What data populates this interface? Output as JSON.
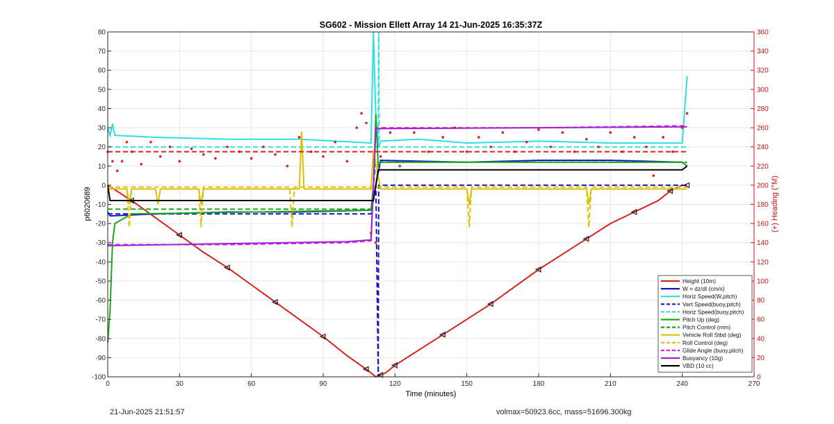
{
  "footer": {
    "timestamp": "21-Jun-2025 21:51:57",
    "params": "volmax=50923.6cc, mass=51696.300kg"
  },
  "chart_data": {
    "type": "line",
    "title": "SG602 - Mission Ellett Array 14 21-Jun-2025 16:35:37Z",
    "xlabel": "Time (minutes)",
    "ylabel": "p6020689",
    "y2label": "(+) Heading (°M)",
    "xlim": [
      0,
      270
    ],
    "ylim": [
      -100,
      80
    ],
    "y2lim": [
      0,
      360
    ],
    "xticks": [
      0,
      30,
      60,
      90,
      120,
      150,
      180,
      210,
      240,
      270
    ],
    "yticks": [
      -100,
      -90,
      -80,
      -70,
      -60,
      -50,
      -40,
      -30,
      -20,
      -10,
      0,
      10,
      20,
      30,
      40,
      50,
      60,
      70,
      80
    ],
    "y2ticks": [
      0,
      20,
      40,
      60,
      80,
      100,
      120,
      140,
      160,
      180,
      200,
      220,
      240,
      260,
      280,
      300,
      320,
      340,
      360
    ],
    "grid": true,
    "legend_position": "bottom-right",
    "colors": {
      "axis_left": "#262626",
      "axis_right": "#cc1111",
      "grid": "#e6e6e6"
    },
    "series": [
      {
        "name": "Height (10m)",
        "color": "#d62020",
        "style": "solid",
        "axis": "left",
        "x": [
          0,
          10,
          20,
          30,
          40,
          50,
          60,
          70,
          80,
          90,
          100,
          108,
          112,
          114,
          116,
          120,
          130,
          140,
          150,
          160,
          170,
          180,
          190,
          200,
          210,
          220,
          230,
          235,
          240,
          242
        ],
        "y": [
          0,
          -8,
          -17,
          -26,
          -35,
          -43,
          -52,
          -61,
          -70,
          -79,
          -89,
          -96,
          -100,
          -99,
          -98,
          -94,
          -86,
          -78,
          -70,
          -62,
          -53,
          -44,
          -36,
          -28,
          -20,
          -14,
          -8,
          -3,
          0,
          0
        ]
      },
      {
        "name": "W = dz/dt (cm/s)",
        "color": "#1515c8",
        "style": "solid",
        "axis": "left",
        "x": [
          0,
          1,
          20,
          50,
          80,
          110,
          112,
          114,
          150,
          180,
          210,
          240,
          242
        ],
        "y": [
          -14,
          -16,
          -15,
          -14,
          -14,
          -13,
          0,
          13,
          12,
          13,
          13,
          12,
          10
        ]
      },
      {
        "name": "Horiz Speed(W,pitch)",
        "color": "#2ce0e0",
        "style": "solid",
        "axis": "left",
        "x": [
          0,
          1,
          2,
          3,
          20,
          50,
          80,
          110,
          111,
          112,
          113,
          114,
          130,
          150,
          180,
          210,
          240,
          242
        ],
        "y": [
          30,
          26,
          32,
          26,
          25,
          24,
          24,
          22,
          80,
          35,
          20,
          23,
          24,
          22,
          23,
          22,
          22,
          57
        ]
      },
      {
        "name": "Vert Speed(buoy,pitch)",
        "color": "#1515c8",
        "style": "dashed",
        "axis": "left",
        "x": [
          0,
          110,
          112,
          113,
          113.2,
          114,
          242
        ],
        "y": [
          -15,
          -15,
          0,
          -100,
          0,
          0,
          0
        ]
      },
      {
        "name": "Horiz Speed(buoy,pitch)",
        "color": "#2ce0e0",
        "style": "dashed",
        "axis": "left",
        "x": [
          0,
          110,
          113,
          113.2,
          113.4,
          114,
          242
        ],
        "y": [
          20,
          20,
          20,
          80,
          20,
          20,
          20
        ]
      },
      {
        "name": "Pitch Up (deg)",
        "color": "#18a818",
        "style": "solid",
        "axis": "left",
        "x": [
          0,
          1,
          2,
          3,
          10,
          110,
          111,
          112,
          113,
          114,
          240,
          242
        ],
        "y": [
          -82,
          -65,
          -30,
          -20,
          -15,
          -13,
          0,
          37,
          10,
          12,
          12,
          10
        ]
      },
      {
        "name": "Pitch Control (mm)",
        "color": "#18a818",
        "style": "dashed",
        "axis": "left",
        "x": [
          0,
          110,
          112,
          114,
          242
        ],
        "y": [
          -12.5,
          -12.5,
          12,
          12,
          12
        ]
      },
      {
        "name": "Vehicle Roll Stbd (deg)",
        "color": "#e0c000",
        "style": "solid",
        "axis": "left",
        "x": [
          0,
          8,
          9,
          10,
          20,
          21,
          22,
          38,
          39,
          40,
          80,
          81,
          82,
          110,
          111,
          114,
          150,
          151,
          152,
          200,
          201,
          202,
          242
        ],
        "y": [
          -2,
          -2,
          -10,
          -2,
          -2,
          -10,
          -2,
          -2,
          -10,
          -2,
          -2,
          28,
          -2,
          -2,
          18,
          -2,
          -2,
          -10,
          -2,
          -2,
          -10,
          -2,
          -2
        ]
      },
      {
        "name": "Roll Control (deg)",
        "color": "#e0c000",
        "style": "dashed",
        "axis": "left",
        "x": [
          0,
          8,
          9,
          10,
          38,
          39,
          40,
          76,
          77,
          78,
          110,
          114,
          150,
          151,
          152,
          200,
          201,
          202,
          242
        ],
        "y": [
          -1,
          -1,
          -22,
          -1,
          -1,
          -22,
          -1,
          -1,
          -22,
          -1,
          -1,
          -1,
          -1,
          -22,
          -1,
          -1,
          -22,
          -1,
          -1
        ]
      },
      {
        "name": "Glide Angle (buoy,pitch)",
        "color": "#e020e0",
        "style": "dashed",
        "axis": "left",
        "x": [
          0,
          2,
          50,
          100,
          110,
          112,
          114,
          180,
          240,
          242
        ],
        "y": [
          -31,
          -31,
          -31,
          -30,
          -29,
          30,
          30,
          30,
          31,
          31
        ]
      },
      {
        "name": "Buoyancy (10g)",
        "color": "#a020d8",
        "style": "solid",
        "axis": "left",
        "x": [
          0,
          2,
          50,
          100,
          110,
          112,
          114,
          180,
          240,
          242
        ],
        "y": [
          -31.5,
          -31.5,
          -30.5,
          -29.5,
          -28.5,
          29.5,
          29.5,
          30,
          30.5,
          30.5
        ]
      },
      {
        "name": "VBD (10 cc)",
        "color": "#000000",
        "style": "solid",
        "axis": "left",
        "x": [
          0,
          1,
          110,
          111,
          113,
          114,
          240,
          242
        ],
        "y": [
          0,
          -8,
          -8,
          -8,
          8,
          8,
          8,
          10
        ]
      },
      {
        "name": "",
        "color": "#d62020",
        "style": "markers",
        "axis": "right",
        "x": [
          0,
          2,
          4,
          6,
          8,
          10,
          14,
          18,
          22,
          26,
          30,
          35,
          40,
          45,
          50,
          55,
          60,
          65,
          70,
          75,
          80,
          85,
          90,
          95,
          100,
          104,
          106,
          108,
          110,
          112,
          114,
          118,
          122,
          128,
          134,
          140,
          145,
          150,
          155,
          160,
          165,
          170,
          175,
          180,
          185,
          190,
          195,
          200,
          205,
          210,
          215,
          220,
          225,
          228,
          232,
          236,
          240,
          242
        ],
        "y": [
          235,
          225,
          215,
          225,
          245,
          235,
          222,
          245,
          230,
          240,
          225,
          238,
          232,
          228,
          240,
          235,
          228,
          240,
          232,
          220,
          250,
          235,
          230,
          245,
          225,
          260,
          275,
          265,
          150,
          140,
          230,
          255,
          220,
          255,
          235,
          250,
          260,
          235,
          250,
          240,
          255,
          235,
          245,
          258,
          240,
          255,
          235,
          248,
          240,
          255,
          235,
          250,
          240,
          210,
          250,
          235,
          260,
          275
        ]
      },
      {
        "name": "",
        "color": "#d62020",
        "style": "dashed",
        "axis": "right",
        "x": [
          0,
          242
        ],
        "y": [
          235,
          235
        ]
      }
    ]
  }
}
